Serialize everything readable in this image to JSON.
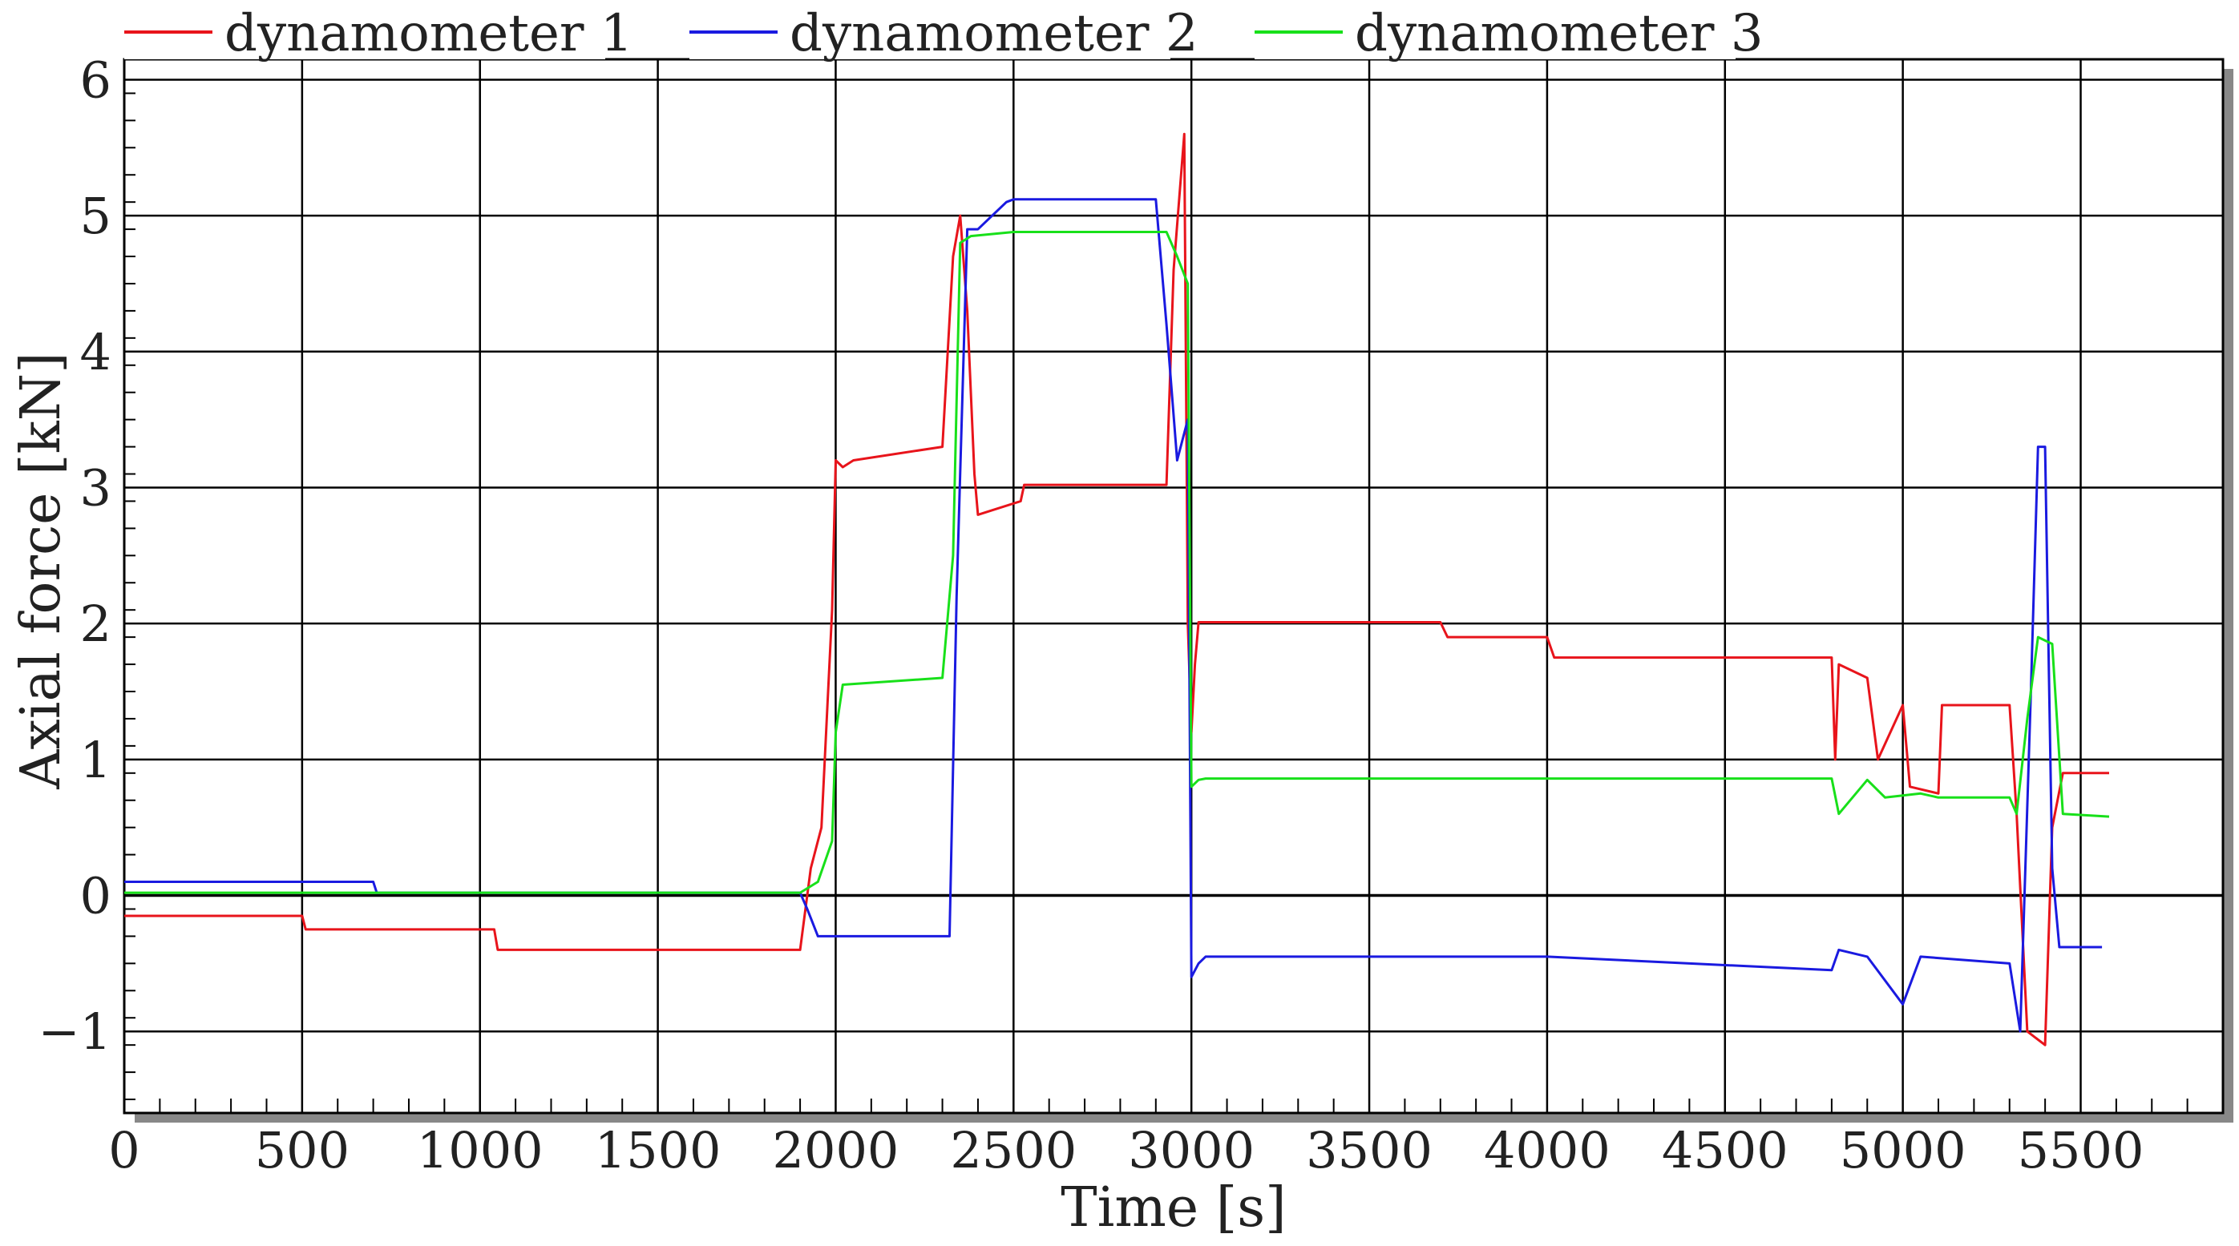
{
  "chart_data": {
    "type": "line",
    "xlabel": "Time [s]",
    "ylabel": "Axial force [kN]",
    "xlim": [
      0,
      5900
    ],
    "ylim": [
      -1.6,
      6.15
    ],
    "x_ticks": [
      0,
      500,
      1000,
      1500,
      2000,
      2500,
      3000,
      3500,
      4000,
      4500,
      5000,
      5500
    ],
    "x_tick_labels": [
      "0",
      "500",
      "1000",
      "1500",
      "2000",
      "2500",
      "3000",
      "3500",
      "4000",
      "4500",
      "5000",
      "5500"
    ],
    "y_ticks": [
      -1,
      0,
      1,
      2,
      3,
      4,
      5,
      6
    ],
    "y_tick_labels": [
      "−1",
      "0",
      "1",
      "2",
      "3",
      "4",
      "5",
      "6"
    ],
    "grid": true,
    "legend_position": "top",
    "series": [
      {
        "name": "dynamometer 1",
        "color": "#e8141b",
        "x": [
          0,
          500,
          510,
          1040,
          1050,
          1900,
          1930,
          1960,
          1990,
          2000,
          2020,
          2050,
          2300,
          2330,
          2350,
          2370,
          2390,
          2400,
          2520,
          2530,
          2930,
          2950,
          2980,
          2990,
          3000,
          3010,
          3020,
          3040,
          3060,
          3700,
          3720,
          4000,
          4020,
          4800,
          4810,
          4820,
          4900,
          4930,
          5000,
          5020,
          5100,
          5110,
          5300,
          5320,
          5350,
          5400,
          5420,
          5450,
          5580
        ],
        "y": [
          -0.15,
          -0.15,
          -0.25,
          -0.25,
          -0.4,
          -0.4,
          0.2,
          0.5,
          2.1,
          3.2,
          3.15,
          3.2,
          3.3,
          4.7,
          5.0,
          4.3,
          3.1,
          2.8,
          2.9,
          3.02,
          3.02,
          4.6,
          5.6,
          2.0,
          1.2,
          1.7,
          2.01,
          2.01,
          2.01,
          2.01,
          1.9,
          1.9,
          1.75,
          1.75,
          1.0,
          1.7,
          1.6,
          1.0,
          1.4,
          0.8,
          0.75,
          1.4,
          1.4,
          0.6,
          -1.0,
          -1.1,
          0.5,
          0.9,
          0.9
        ]
      },
      {
        "name": "dynamometer 2",
        "color": "#1a1ae0",
        "x": [
          0,
          700,
          710,
          1900,
          1920,
          1950,
          1980,
          2000,
          2320,
          2340,
          2370,
          2400,
          2480,
          2500,
          2900,
          2930,
          2960,
          2990,
          3000,
          3020,
          3040,
          3060,
          4000,
          4800,
          4820,
          4900,
          5000,
          5050,
          5300,
          5330,
          5360,
          5380,
          5400,
          5420,
          5440,
          5560
        ],
        "y": [
          0.1,
          0.1,
          0.02,
          0.02,
          -0.1,
          -0.3,
          -0.3,
          -0.3,
          -0.3,
          2.2,
          4.9,
          4.9,
          5.1,
          5.12,
          5.12,
          4.2,
          3.2,
          3.5,
          -0.6,
          -0.5,
          -0.45,
          -0.45,
          -0.45,
          -0.55,
          -0.4,
          -0.45,
          -0.8,
          -0.45,
          -0.5,
          -1.0,
          1.5,
          3.3,
          3.3,
          0.2,
          -0.38,
          -0.38
        ]
      },
      {
        "name": "dynamometer 3",
        "color": "#18e01a",
        "x": [
          0,
          1900,
          1950,
          1990,
          2000,
          2020,
          2300,
          2330,
          2350,
          2380,
          2500,
          2930,
          2960,
          2990,
          3000,
          3020,
          3040,
          4800,
          4820,
          4900,
          4950,
          5050,
          5100,
          5300,
          5320,
          5350,
          5380,
          5420,
          5450,
          5580
        ],
        "y": [
          0.02,
          0.02,
          0.1,
          0.4,
          1.2,
          1.55,
          1.6,
          2.5,
          4.8,
          4.85,
          4.88,
          4.88,
          4.7,
          4.5,
          0.8,
          0.85,
          0.86,
          0.86,
          0.6,
          0.85,
          0.72,
          0.75,
          0.72,
          0.72,
          0.6,
          1.3,
          1.9,
          1.85,
          0.6,
          0.58
        ]
      }
    ]
  }
}
